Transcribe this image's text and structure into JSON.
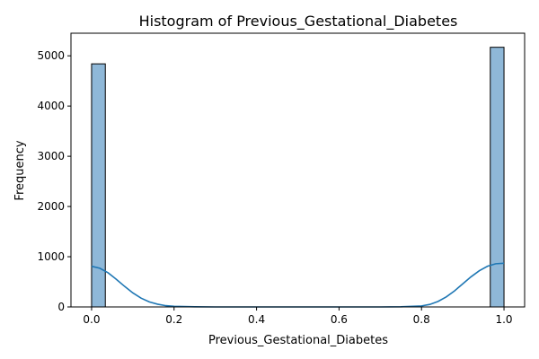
{
  "chart_data": {
    "type": "bar",
    "title": "Histogram of Previous_Gestational_Diabetes",
    "xlabel": "Previous_Gestational_Diabetes",
    "ylabel": "Frequency",
    "xlim": [
      -0.05,
      1.05
    ],
    "ylim": [
      0,
      5450
    ],
    "x_ticks": [
      0.0,
      0.2,
      0.4,
      0.6,
      0.8,
      1.0
    ],
    "x_tick_labels": [
      "0.0",
      "0.2",
      "0.4",
      "0.6",
      "0.8",
      "1.0"
    ],
    "y_ticks": [
      0,
      1000,
      2000,
      3000,
      4000,
      5000
    ],
    "y_tick_labels": [
      "0",
      "1000",
      "2000",
      "3000",
      "4000",
      "5000"
    ],
    "bins": [
      {
        "x0": 0.0,
        "x1": 0.0333,
        "count": 4840
      },
      {
        "x0": 0.9667,
        "x1": 1.0,
        "count": 5170
      }
    ],
    "kde": {
      "x": [
        0.0,
        0.02,
        0.04,
        0.06,
        0.08,
        0.1,
        0.12,
        0.14,
        0.16,
        0.18,
        0.2,
        0.25,
        0.3,
        0.4,
        0.5,
        0.6,
        0.7,
        0.75,
        0.8,
        0.82,
        0.84,
        0.86,
        0.88,
        0.9,
        0.92,
        0.94,
        0.96,
        0.98,
        1.0
      ],
      "y": [
        810,
        770,
        680,
        550,
        410,
        280,
        175,
        100,
        55,
        25,
        12,
        3,
        0,
        0,
        0,
        0,
        0,
        3,
        20,
        50,
        110,
        200,
        320,
        460,
        600,
        720,
        810,
        860,
        870
      ]
    },
    "bar_color": "#8fb8d8",
    "line_color": "#1f77b4",
    "grid": false
  }
}
